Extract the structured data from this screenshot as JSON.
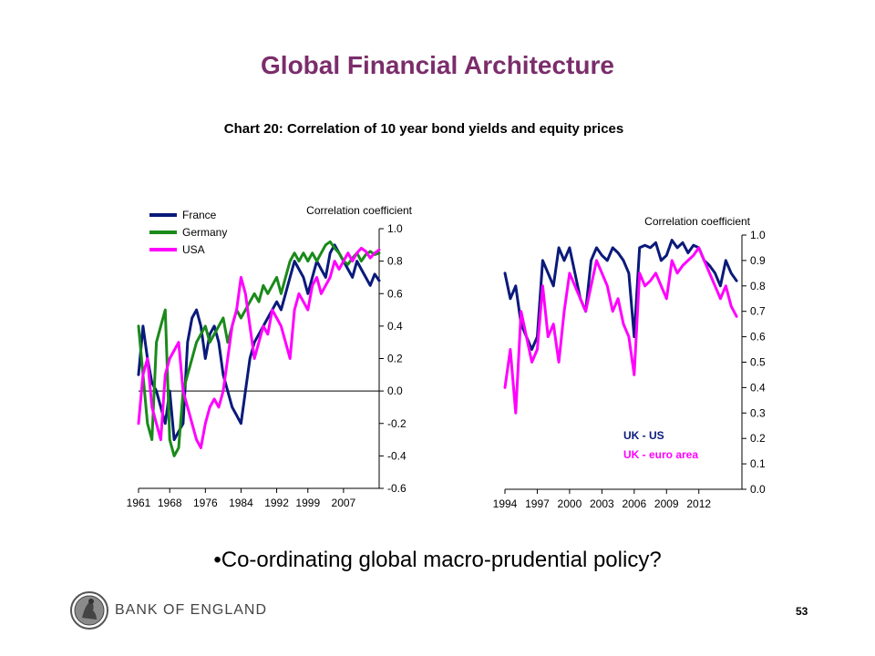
{
  "slide": {
    "title": "Global Financial Architecture",
    "subtitle": "Chart 20: Correlation of 10 year bond yields and equity prices",
    "bullet": "•Co-ordinating global macro-prudential policy?",
    "logo_text": "BANK OF ENGLAND",
    "page_number": "53"
  },
  "colors": {
    "title": "#7b2d6b",
    "navy": "#0a1a7a",
    "green": "#1a8a1a",
    "magenta": "#ff00ff"
  },
  "chart_data": [
    {
      "type": "line",
      "ylabel": "Correlation coefficient",
      "ylim": [
        -0.6,
        1.0
      ],
      "yticks": [
        -0.6,
        -0.4,
        -0.2,
        0.0,
        0.2,
        0.4,
        0.6,
        0.8,
        1.0
      ],
      "ytick_labels": [
        "-0.6",
        "-0.4",
        "-0.2",
        "0.0",
        "0.2",
        "0.4",
        "0.6",
        "0.8",
        "1.0"
      ],
      "xlim": [
        1961,
        2015
      ],
      "xticks": [
        1961,
        1968,
        1976,
        1984,
        1992,
        1999,
        2007
      ],
      "xtick_labels": [
        "1961",
        "1968",
        "1976",
        "1984",
        "1992",
        "1999",
        "2007"
      ],
      "legend_position": "top-left",
      "zero_line": true,
      "series": [
        {
          "name": "France",
          "color": "#0a1a7a",
          "x": [
            1961,
            1962,
            1963,
            1964,
            1965,
            1966,
            1967,
            1968,
            1969,
            1970,
            1971,
            1972,
            1973,
            1974,
            1975,
            1976,
            1977,
            1978,
            1979,
            1980,
            1981,
            1982,
            1983,
            1984,
            1985,
            1986,
            1987,
            1988,
            1989,
            1990,
            1991,
            1992,
            1993,
            1994,
            1995,
            1996,
            1997,
            1998,
            1999,
            2000,
            2001,
            2002,
            2003,
            2004,
            2005,
            2006,
            2007,
            2008,
            2009,
            2010,
            2011,
            2012,
            2013,
            2014,
            2015
          ],
          "y": [
            0.1,
            0.4,
            0.2,
            0.05,
            0.0,
            -0.1,
            -0.2,
            0.0,
            -0.3,
            -0.25,
            -0.2,
            0.3,
            0.45,
            0.5,
            0.4,
            0.2,
            0.35,
            0.4,
            0.3,
            0.1,
            0.0,
            -0.1,
            -0.15,
            -0.2,
            0.0,
            0.2,
            0.3,
            0.35,
            0.4,
            0.45,
            0.5,
            0.55,
            0.5,
            0.6,
            0.7,
            0.8,
            0.75,
            0.7,
            0.6,
            0.7,
            0.8,
            0.75,
            0.7,
            0.85,
            0.9,
            0.85,
            0.8,
            0.75,
            0.7,
            0.8,
            0.75,
            0.7,
            0.65,
            0.72,
            0.68
          ]
        },
        {
          "name": "Germany",
          "color": "#1a8a1a",
          "x": [
            1961,
            1962,
            1963,
            1964,
            1965,
            1966,
            1967,
            1968,
            1969,
            1970,
            1971,
            1972,
            1973,
            1974,
            1975,
            1976,
            1977,
            1978,
            1979,
            1980,
            1981,
            1982,
            1983,
            1984,
            1985,
            1986,
            1987,
            1988,
            1989,
            1990,
            1991,
            1992,
            1993,
            1994,
            1995,
            1996,
            1997,
            1998,
            1999,
            2000,
            2001,
            2002,
            2003,
            2004,
            2005,
            2006,
            2007,
            2008,
            2009,
            2010,
            2011,
            2012,
            2013,
            2014,
            2015
          ],
          "y": [
            0.4,
            0.1,
            -0.2,
            -0.3,
            0.3,
            0.4,
            0.5,
            -0.3,
            -0.4,
            -0.35,
            0.0,
            0.1,
            0.2,
            0.3,
            0.35,
            0.4,
            0.3,
            0.35,
            0.4,
            0.45,
            0.3,
            0.4,
            0.5,
            0.45,
            0.5,
            0.55,
            0.6,
            0.55,
            0.65,
            0.6,
            0.65,
            0.7,
            0.6,
            0.7,
            0.8,
            0.85,
            0.8,
            0.85,
            0.8,
            0.85,
            0.8,
            0.85,
            0.9,
            0.92,
            0.88,
            0.85,
            0.8,
            0.78,
            0.82,
            0.85,
            0.8,
            0.84,
            0.86,
            0.84,
            0.85
          ]
        },
        {
          "name": "USA",
          "color": "#ff00ff",
          "x": [
            1961,
            1962,
            1963,
            1964,
            1965,
            1966,
            1967,
            1968,
            1969,
            1970,
            1971,
            1972,
            1973,
            1974,
            1975,
            1976,
            1977,
            1978,
            1979,
            1980,
            1981,
            1982,
            1983,
            1984,
            1985,
            1986,
            1987,
            1988,
            1989,
            1990,
            1991,
            1992,
            1993,
            1994,
            1995,
            1996,
            1997,
            1998,
            1999,
            2000,
            2001,
            2002,
            2003,
            2004,
            2005,
            2006,
            2007,
            2008,
            2009,
            2010,
            2011,
            2012,
            2013,
            2014,
            2015
          ],
          "y": [
            -0.2,
            0.1,
            0.2,
            -0.1,
            -0.2,
            -0.3,
            0.1,
            0.2,
            0.25,
            0.3,
            0.0,
            -0.1,
            -0.2,
            -0.3,
            -0.35,
            -0.2,
            -0.1,
            -0.05,
            -0.1,
            0.0,
            0.2,
            0.4,
            0.5,
            0.7,
            0.6,
            0.4,
            0.2,
            0.3,
            0.4,
            0.35,
            0.5,
            0.45,
            0.4,
            0.3,
            0.2,
            0.5,
            0.6,
            0.55,
            0.5,
            0.65,
            0.7,
            0.6,
            0.65,
            0.7,
            0.8,
            0.75,
            0.8,
            0.85,
            0.8,
            0.85,
            0.88,
            0.86,
            0.82,
            0.85,
            0.87
          ]
        }
      ]
    },
    {
      "type": "line",
      "ylabel": "Correlation coefficient",
      "ylim": [
        0.0,
        1.0
      ],
      "yticks": [
        0.0,
        0.1,
        0.2,
        0.3,
        0.4,
        0.5,
        0.6,
        0.7,
        0.8,
        0.9,
        1.0
      ],
      "ytick_labels": [
        "0.0",
        "0.1",
        "0.2",
        "0.3",
        "0.4",
        "0.5",
        "0.6",
        "0.7",
        "0.8",
        "0.9",
        "1.0"
      ],
      "xlim": [
        1994,
        2016
      ],
      "xticks": [
        1994,
        1997,
        2000,
        2003,
        2006,
        2009,
        2012
      ],
      "xtick_labels": [
        "1994",
        "1997",
        "2000",
        "2003",
        "2006",
        "2009",
        "2012"
      ],
      "legend_position": "bottom-right",
      "series": [
        {
          "name": "UK - US",
          "color": "#0a1a7a",
          "x": [
            1994,
            1994.5,
            1995,
            1995.5,
            1996,
            1996.5,
            1997,
            1997.5,
            1998,
            1998.5,
            1999,
            1999.5,
            2000,
            2000.5,
            2001,
            2001.5,
            2002,
            2002.5,
            2003,
            2003.5,
            2004,
            2004.5,
            2005,
            2005.5,
            2006,
            2006.5,
            2007,
            2007.5,
            2008,
            2008.5,
            2009,
            2009.5,
            2010,
            2010.5,
            2011,
            2011.5,
            2012,
            2012.5,
            2013,
            2013.5,
            2014,
            2014.5,
            2015,
            2015.5
          ],
          "y": [
            0.85,
            0.75,
            0.8,
            0.65,
            0.6,
            0.55,
            0.6,
            0.9,
            0.85,
            0.8,
            0.95,
            0.9,
            0.95,
            0.85,
            0.75,
            0.7,
            0.9,
            0.95,
            0.92,
            0.9,
            0.95,
            0.93,
            0.9,
            0.85,
            0.6,
            0.95,
            0.96,
            0.95,
            0.97,
            0.9,
            0.92,
            0.98,
            0.95,
            0.97,
            0.93,
            0.96,
            0.95,
            0.9,
            0.88,
            0.85,
            0.8,
            0.9,
            0.85,
            0.82
          ]
        },
        {
          "name": "UK - euro area",
          "color": "#ff00ff",
          "x": [
            1994,
            1994.5,
            1995,
            1995.5,
            1996,
            1996.5,
            1997,
            1997.5,
            1998,
            1998.5,
            1999,
            1999.5,
            2000,
            2000.5,
            2001,
            2001.5,
            2002,
            2002.5,
            2003,
            2003.5,
            2004,
            2004.5,
            2005,
            2005.5,
            2006,
            2006.5,
            2007,
            2007.5,
            2008,
            2008.5,
            2009,
            2009.5,
            2010,
            2010.5,
            2011,
            2011.5,
            2012,
            2012.5,
            2013,
            2013.5,
            2014,
            2014.5,
            2015,
            2015.5
          ],
          "y": [
            0.4,
            0.55,
            0.3,
            0.7,
            0.6,
            0.5,
            0.55,
            0.8,
            0.6,
            0.65,
            0.5,
            0.7,
            0.85,
            0.8,
            0.75,
            0.7,
            0.8,
            0.9,
            0.85,
            0.8,
            0.7,
            0.75,
            0.65,
            0.6,
            0.45,
            0.85,
            0.8,
            0.82,
            0.85,
            0.8,
            0.75,
            0.9,
            0.85,
            0.88,
            0.9,
            0.92,
            0.95,
            0.9,
            0.85,
            0.8,
            0.75,
            0.8,
            0.72,
            0.68
          ]
        }
      ]
    }
  ]
}
